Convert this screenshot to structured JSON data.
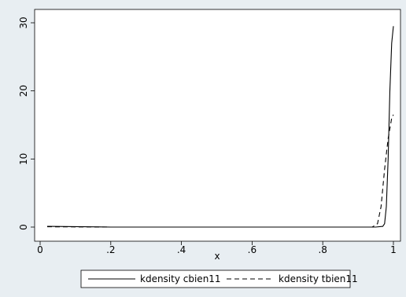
{
  "colors": {
    "outer_background": "#e8eef2",
    "plot_background": "#ffffff",
    "line_color": "#000000"
  },
  "chart_data": {
    "type": "line",
    "title": "",
    "xlabel": "x",
    "ylabel": "",
    "xlim": [
      0,
      1
    ],
    "ylim": [
      0,
      30
    ],
    "xticks": [
      0,
      0.2,
      0.4,
      0.6,
      0.8,
      1
    ],
    "xtick_labels": [
      "0",
      ".2",
      ".4",
      ".6",
      ".8",
      "1"
    ],
    "yticks": [
      0,
      10,
      20,
      30
    ],
    "ytick_labels": [
      "0",
      "10",
      "20",
      "30"
    ],
    "grid": false,
    "legend_position": "bottom",
    "series": [
      {
        "name": "kdensity cbien11",
        "style": "solid",
        "x": [
          0.02,
          0.2,
          0.4,
          0.6,
          0.8,
          0.95,
          0.97,
          0.975,
          0.98,
          0.985,
          0.99,
          0.995,
          1.0
        ],
        "y": [
          0.1,
          0.0,
          0.0,
          0.0,
          0.0,
          0.0,
          0.1,
          0.5,
          3,
          10,
          20,
          27,
          29.5
        ]
      },
      {
        "name": "kdensity tbien11",
        "style": "dashed",
        "x": [
          0.02,
          0.2,
          0.4,
          0.6,
          0.8,
          0.94,
          0.955,
          0.965,
          0.975,
          0.985,
          0.995,
          1.0
        ],
        "y": [
          0.05,
          0.0,
          0.0,
          0.0,
          0.0,
          0.0,
          0.5,
          3,
          8.5,
          13,
          16,
          16.5
        ]
      }
    ]
  }
}
